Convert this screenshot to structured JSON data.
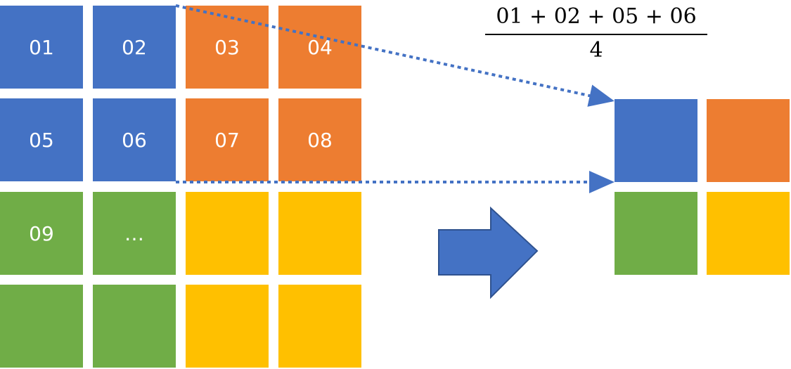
{
  "colors": {
    "blue": "#4472C4",
    "orange": "#ED7D31",
    "green": "#70AD47",
    "yellow": "#FFC000",
    "arrow_fill": "#4472C4",
    "arrow_stroke": "#2F528F",
    "dotted_line": "#4472C4"
  },
  "input_grid": {
    "rows": [
      [
        {
          "label": "01",
          "color": "blue"
        },
        {
          "label": "02",
          "color": "blue"
        },
        {
          "label": "03",
          "color": "orange"
        },
        {
          "label": "04",
          "color": "orange"
        }
      ],
      [
        {
          "label": "05",
          "color": "blue"
        },
        {
          "label": "06",
          "color": "blue"
        },
        {
          "label": "07",
          "color": "orange"
        },
        {
          "label": "08",
          "color": "orange"
        }
      ],
      [
        {
          "label": "09",
          "color": "green"
        },
        {
          "label": "…",
          "color": "green"
        },
        {
          "label": "",
          "color": "yellow"
        },
        {
          "label": "",
          "color": "yellow"
        }
      ],
      [
        {
          "label": "",
          "color": "green"
        },
        {
          "label": "",
          "color": "green"
        },
        {
          "label": "",
          "color": "yellow"
        },
        {
          "label": "",
          "color": "yellow"
        }
      ]
    ]
  },
  "output_grid": {
    "rows": [
      [
        {
          "color": "blue"
        },
        {
          "color": "orange"
        }
      ],
      [
        {
          "color": "green"
        },
        {
          "color": "yellow"
        }
      ]
    ]
  },
  "formula": {
    "numerator": "01 + 02 + 05 + 06",
    "denominator": "4"
  },
  "arrow_icon": "right-block-arrow-icon"
}
